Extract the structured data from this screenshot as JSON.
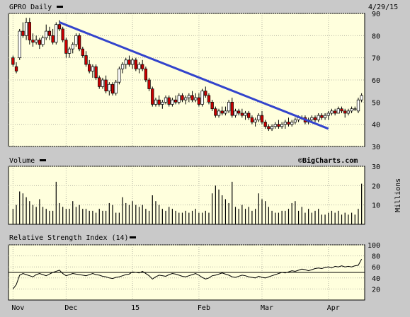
{
  "colors": {
    "background": "#c9c9c9",
    "plot_background": "#ffffdd",
    "grid": "#b8b8a8",
    "up_candle": "#ffffff",
    "down_candle": "#cc0000",
    "candle_outline": "#000000",
    "volume_bar": "#000000",
    "rsi_line": "#000000",
    "trendline": "#3344cc",
    "label_text": "#000000"
  },
  "header": {
    "symbol_label": "GPRO Daily",
    "date": "4/29/15",
    "watermark": "©BigCharts.com"
  },
  "chart_data": [
    {
      "type": "candlestick",
      "title": "GPRO Daily",
      "ylim": [
        30,
        90
      ],
      "y_ticks": [
        "90",
        "80",
        "70",
        "60",
        "50",
        "40",
        "30"
      ],
      "y_scale": "linear",
      "x_ticks": [
        "Nov",
        "Dec",
        "15",
        "Feb",
        "Mar",
        "Apr"
      ],
      "grid": true,
      "annotations": [
        {
          "type": "trendline",
          "from": [
            14,
            86
          ],
          "to": [
            95,
            38
          ]
        }
      ],
      "ohlc": [
        [
          0,
          70,
          71,
          66,
          67
        ],
        [
          1,
          66,
          68,
          63,
          64
        ],
        [
          2,
          70,
          83,
          69,
          82
        ],
        [
          3,
          82,
          86,
          79,
          80
        ],
        [
          4,
          80,
          88,
          78,
          86
        ],
        [
          5,
          86,
          88,
          76,
          78
        ],
        [
          6,
          78,
          81,
          75,
          77
        ],
        [
          7,
          77,
          80,
          76,
          78
        ],
        [
          8,
          78,
          79,
          74,
          76
        ],
        [
          9,
          76,
          80,
          75,
          79
        ],
        [
          10,
          79,
          85,
          78,
          82
        ],
        [
          11,
          82,
          84,
          78,
          80
        ],
        [
          12,
          80,
          83,
          76,
          77
        ],
        [
          13,
          77,
          86,
          76,
          85
        ],
        [
          14,
          85,
          87,
          82,
          83
        ],
        [
          15,
          83,
          84,
          77,
          78
        ],
        [
          16,
          78,
          79,
          70,
          72
        ],
        [
          17,
          72,
          75,
          70,
          74
        ],
        [
          18,
          74,
          77,
          72,
          76
        ],
        [
          19,
          76,
          81,
          75,
          80
        ],
        [
          20,
          80,
          81,
          73,
          74
        ],
        [
          21,
          74,
          75,
          70,
          71
        ],
        [
          22,
          71,
          73,
          66,
          67
        ],
        [
          23,
          67,
          69,
          63,
          64
        ],
        [
          24,
          64,
          67,
          61,
          66
        ],
        [
          25,
          66,
          67,
          60,
          61
        ],
        [
          26,
          61,
          62,
          56,
          57
        ],
        [
          27,
          57,
          61,
          56,
          60
        ],
        [
          28,
          60,
          62,
          54,
          55
        ],
        [
          29,
          55,
          59,
          53,
          58
        ],
        [
          30,
          58,
          59,
          53,
          54
        ],
        [
          31,
          54,
          60,
          53,
          59
        ],
        [
          32,
          59,
          66,
          58,
          65
        ],
        [
          33,
          65,
          68,
          63,
          67
        ],
        [
          34,
          67,
          70,
          65,
          69
        ],
        [
          35,
          69,
          71,
          66,
          67
        ],
        [
          36,
          67,
          70,
          65,
          69
        ],
        [
          37,
          69,
          70,
          64,
          65
        ],
        [
          38,
          65,
          68,
          63,
          67
        ],
        [
          39,
          67,
          69,
          64,
          65
        ],
        [
          40,
          65,
          66,
          59,
          60
        ],
        [
          41,
          60,
          61,
          55,
          56
        ],
        [
          42,
          56,
          57,
          48,
          49
        ],
        [
          43,
          49,
          52,
          48,
          51
        ],
        [
          44,
          51,
          53,
          48,
          49
        ],
        [
          45,
          49,
          51,
          47,
          50
        ],
        [
          46,
          50,
          53,
          49,
          52
        ],
        [
          47,
          52,
          53,
          48,
          49
        ],
        [
          48,
          49,
          52,
          48,
          51
        ],
        [
          49,
          51,
          53,
          49,
          50
        ],
        [
          50,
          50,
          54,
          49,
          53
        ],
        [
          51,
          53,
          54,
          50,
          51
        ],
        [
          52,
          51,
          53,
          49,
          52
        ],
        [
          53,
          52,
          54,
          50,
          53
        ],
        [
          54,
          53,
          55,
          50,
          51
        ],
        [
          55,
          51,
          54,
          50,
          52
        ],
        [
          56,
          52,
          54,
          48,
          49
        ],
        [
          57,
          49,
          56,
          48,
          55
        ],
        [
          58,
          55,
          57,
          52,
          53
        ],
        [
          59,
          53,
          54,
          49,
          50
        ],
        [
          60,
          50,
          51,
          46,
          47
        ],
        [
          61,
          47,
          48,
          43,
          44
        ],
        [
          62,
          44,
          47,
          43,
          46
        ],
        [
          63,
          46,
          48,
          44,
          45
        ],
        [
          64,
          45,
          48,
          44,
          46
        ],
        [
          65,
          46,
          51,
          45,
          50
        ],
        [
          66,
          50,
          52,
          43,
          44
        ],
        [
          67,
          44,
          47,
          43,
          46
        ],
        [
          68,
          46,
          47,
          44,
          45
        ],
        [
          69,
          45,
          47,
          43,
          44
        ],
        [
          70,
          44,
          46,
          42,
          45
        ],
        [
          71,
          45,
          46,
          42,
          43
        ],
        [
          72,
          43,
          44,
          40,
          41
        ],
        [
          73,
          41,
          43,
          39,
          42
        ],
        [
          74,
          42,
          45,
          41,
          44
        ],
        [
          75,
          44,
          46,
          40,
          41
        ],
        [
          76,
          41,
          42,
          38,
          39
        ],
        [
          77,
          39,
          40,
          37,
          38
        ],
        [
          78,
          38,
          40,
          37,
          39
        ],
        [
          79,
          39,
          41,
          38,
          40
        ],
        [
          80,
          40,
          42,
          38,
          39
        ],
        [
          81,
          39,
          41,
          38,
          40
        ],
        [
          82,
          40,
          42,
          38,
          41
        ],
        [
          83,
          41,
          43,
          39,
          40
        ],
        [
          84,
          40,
          42,
          39,
          41
        ],
        [
          85,
          41,
          43,
          40,
          42
        ],
        [
          86,
          42,
          44,
          41,
          43
        ],
        [
          87,
          43,
          44,
          42,
          43
        ],
        [
          88,
          43,
          44,
          40,
          41
        ],
        [
          89,
          41,
          43,
          40,
          42
        ],
        [
          90,
          42,
          44,
          41,
          43
        ],
        [
          91,
          43,
          44,
          41,
          42
        ],
        [
          92,
          42,
          45,
          41,
          44
        ],
        [
          93,
          44,
          45,
          42,
          43
        ],
        [
          94,
          43,
          45,
          42,
          44
        ],
        [
          95,
          44,
          46,
          42,
          45
        ],
        [
          96,
          45,
          47,
          44,
          46
        ],
        [
          97,
          46,
          47,
          44,
          45
        ],
        [
          98,
          45,
          48,
          45,
          47
        ],
        [
          99,
          47,
          48,
          45,
          46
        ],
        [
          100,
          46,
          47,
          43,
          45
        ],
        [
          101,
          45,
          47,
          44,
          46
        ],
        [
          102,
          46,
          48,
          45,
          47
        ],
        [
          103,
          47,
          48,
          46,
          47
        ],
        [
          104,
          46,
          52,
          45,
          51
        ],
        [
          105,
          51,
          54,
          50,
          53
        ]
      ]
    },
    {
      "type": "bar",
      "title": "Volume",
      "ylabel": "Millions",
      "ylim": [
        0,
        30
      ],
      "y_ticks": [
        "30",
        "20",
        "10"
      ],
      "values": [
        8,
        10,
        17,
        16,
        14,
        12,
        10,
        9,
        13,
        9,
        8,
        7,
        7,
        22,
        11,
        9,
        8,
        8,
        12,
        9,
        10,
        8,
        8,
        7,
        7,
        6,
        8,
        7,
        7,
        11,
        10,
        6,
        6,
        14,
        11,
        10,
        12,
        10,
        9,
        10,
        8,
        7,
        15,
        12,
        10,
        8,
        7,
        9,
        8,
        7,
        6,
        6,
        7,
        6,
        7,
        8,
        6,
        6,
        7,
        6,
        16,
        20,
        18,
        15,
        13,
        11,
        22,
        9,
        8,
        10,
        8,
        9,
        7,
        8,
        16,
        13,
        12,
        9,
        7,
        6,
        6,
        7,
        7,
        8,
        11,
        12,
        7,
        9,
        6,
        8,
        6,
        7,
        8,
        5,
        5,
        6,
        7,
        6,
        7,
        5,
        6,
        5,
        6,
        5,
        8,
        21
      ]
    },
    {
      "type": "line",
      "title": "Relative Strength Index (14)",
      "ylim": [
        0,
        100
      ],
      "y_ticks": [
        "100",
        "80",
        "60",
        "40",
        "20"
      ],
      "reference_line": 50,
      "values": [
        20,
        28,
        45,
        48,
        46,
        44,
        42,
        46,
        48,
        46,
        44,
        47,
        50,
        52,
        54,
        48,
        44,
        46,
        48,
        47,
        46,
        45,
        44,
        46,
        48,
        46,
        45,
        43,
        42,
        40,
        39,
        41,
        42,
        44,
        46,
        47,
        51,
        50,
        49,
        52,
        48,
        44,
        38,
        42,
        45,
        44,
        43,
        46,
        48,
        47,
        45,
        43,
        42,
        44,
        46,
        48,
        45,
        41,
        38,
        40,
        44,
        45,
        47,
        49,
        47,
        45,
        42,
        41,
        43,
        45,
        44,
        42,
        41,
        40,
        43,
        41,
        40,
        42,
        44,
        46,
        48,
        50,
        49,
        51,
        53,
        52,
        54,
        56,
        55,
        53,
        55,
        57,
        58,
        57,
        59,
        60,
        58,
        61,
        60,
        62,
        60,
        61,
        60,
        62,
        63,
        74
      ]
    }
  ]
}
